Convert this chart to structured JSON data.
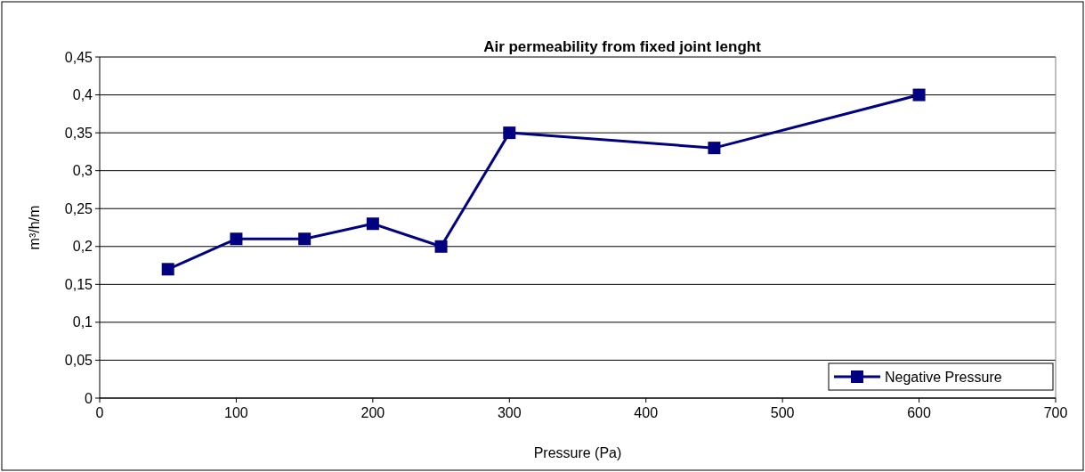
{
  "chart_data": {
    "type": "line",
    "title": "Air permeability from fixed joint lenght",
    "xlabel": "Pressure (Pa)",
    "ylabel": "m³/h/m",
    "series": [
      {
        "name": "Negative Pressure",
        "color": "#000080",
        "x": [
          50,
          100,
          150,
          200,
          250,
          300,
          450,
          600
        ],
        "values": [
          0.17,
          0.21,
          0.21,
          0.23,
          0.2,
          0.35,
          0.33,
          0.4
        ]
      }
    ],
    "xlim": [
      0,
      700
    ],
    "xticks": [
      0,
      100,
      200,
      300,
      400,
      500,
      600,
      700
    ],
    "ylim": [
      0,
      0.45
    ],
    "yticks": [
      0,
      {
        "value": 0.05,
        "label": "0,05"
      },
      {
        "value": 0.1,
        "label": "0,1"
      },
      {
        "value": 0.15,
        "label": "0,15"
      },
      {
        "value": 0.2,
        "label": "0,2"
      },
      {
        "value": 0.25,
        "label": "0,25"
      },
      {
        "value": 0.3,
        "label": "0,3"
      },
      {
        "value": 0.35,
        "label": "0,35"
      },
      {
        "value": 0.4,
        "label": "0,4"
      },
      {
        "value": 0.45,
        "label": "0,45"
      }
    ],
    "grid": "y",
    "legend": "bottom right",
    "marker": "square",
    "line_style": "solid"
  }
}
